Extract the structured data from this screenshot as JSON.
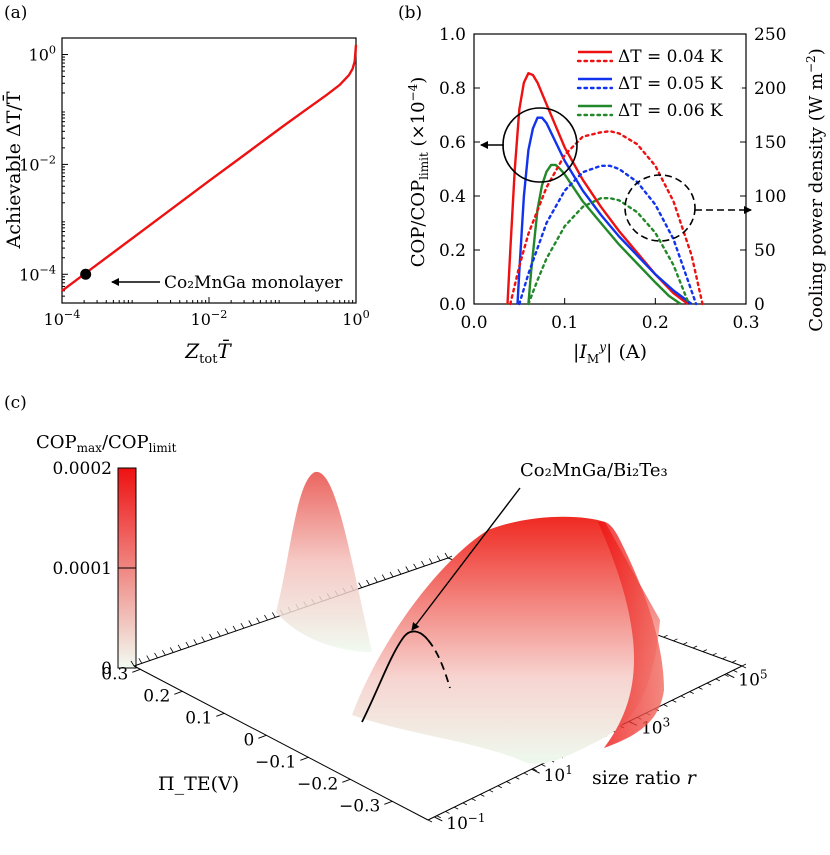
{
  "chart_data": [
    {
      "id": "a",
      "panel_label": "(a)",
      "type": "line",
      "xlabel": "Z_tot T̄",
      "xlabel_main": "Z",
      "xlabel_sub": "tot",
      "xlabel_post": "T̄",
      "ylabel": "Achievable ΔT/T̄",
      "xscale": "log",
      "yscale": "log",
      "xlim": [
        0.0001,
        1
      ],
      "ylim": [
        3e-05,
        2
      ],
      "xticks": [
        {
          "v": 0.0001,
          "base": "10",
          "exp": "−4"
        },
        {
          "v": 0.01,
          "base": "10",
          "exp": "−2"
        },
        {
          "v": 1,
          "base": "10",
          "exp": "0"
        }
      ],
      "yticks": [
        {
          "v": 0.0001,
          "base": "10",
          "exp": "−4"
        },
        {
          "v": 0.01,
          "base": "10",
          "exp": "−2"
        },
        {
          "v": 1,
          "base": "10",
          "exp": "0"
        }
      ],
      "series": [
        {
          "name": "achievable",
          "color": "#ee1111",
          "x": [
            0.0001,
            0.0003,
            0.001,
            0.003,
            0.01,
            0.03,
            0.1,
            0.2,
            0.4,
            0.6,
            0.8,
            0.9,
            0.96,
            1.0
          ],
          "y": [
            5e-05,
            0.00015,
            0.0005,
            0.0015,
            0.005,
            0.0148,
            0.0488,
            0.095,
            0.185,
            0.28,
            0.42,
            0.55,
            0.75,
            1.5
          ]
        }
      ],
      "marker": {
        "x": 0.00021,
        "y": 0.0001,
        "label": "Co₂MnGa monolayer"
      }
    },
    {
      "id": "b",
      "panel_label": "(b)",
      "type": "line",
      "xlabel": "|I_M^y| (A)",
      "ylabel_left": "COP/COP_limit (×10⁻⁴)",
      "ylabel_right": "Cooling power density (W m⁻²)",
      "xlim": [
        0,
        0.3
      ],
      "ylim_left": [
        0,
        1.0
      ],
      "ylim_right": [
        0,
        250
      ],
      "xticks": [
        "0.0",
        "0.1",
        "0.2",
        "0.3"
      ],
      "yticks_left": [
        "0.0",
        "0.2",
        "0.4",
        "0.6",
        "0.8",
        "1.0"
      ],
      "yticks_right": [
        "0",
        "50",
        "100",
        "150",
        "200",
        "250"
      ],
      "legend": [
        {
          "label": "ΔT = 0.04 K",
          "color": "#ee1111"
        },
        {
          "label": "ΔT = 0.05 K",
          "color": "#1133ee"
        },
        {
          "label": "ΔT = 0.06 K",
          "color": "#22882a"
        }
      ],
      "series": [
        {
          "name": "COP ΔT=0.04 K",
          "axis": "left",
          "style": "solid",
          "color": "#ee1111",
          "x": [
            0.037,
            0.04,
            0.045,
            0.05,
            0.055,
            0.06,
            0.065,
            0.07,
            0.08,
            0.09,
            0.1,
            0.12,
            0.14,
            0.16,
            0.18,
            0.2,
            0.22,
            0.236
          ],
          "y": [
            0,
            0.2,
            0.5,
            0.72,
            0.82,
            0.855,
            0.848,
            0.82,
            0.74,
            0.66,
            0.58,
            0.46,
            0.36,
            0.27,
            0.19,
            0.11,
            0.04,
            0
          ]
        },
        {
          "name": "COP ΔT=0.05 K",
          "axis": "left",
          "style": "solid",
          "color": "#1133ee",
          "x": [
            0.048,
            0.05,
            0.055,
            0.06,
            0.065,
            0.07,
            0.075,
            0.08,
            0.09,
            0.1,
            0.12,
            0.14,
            0.16,
            0.18,
            0.2,
            0.22,
            0.24
          ],
          "y": [
            0,
            0.12,
            0.4,
            0.57,
            0.65,
            0.69,
            0.69,
            0.67,
            0.6,
            0.53,
            0.42,
            0.33,
            0.25,
            0.18,
            0.11,
            0.05,
            0
          ]
        },
        {
          "name": "COP ΔT=0.06 K",
          "axis": "left",
          "style": "solid",
          "color": "#22882a",
          "x": [
            0.06,
            0.063,
            0.07,
            0.075,
            0.08,
            0.085,
            0.09,
            0.095,
            0.1,
            0.12,
            0.14,
            0.16,
            0.18,
            0.2,
            0.215,
            0.228
          ],
          "y": [
            0,
            0.12,
            0.35,
            0.44,
            0.49,
            0.515,
            0.515,
            0.5,
            0.48,
            0.38,
            0.3,
            0.22,
            0.15,
            0.08,
            0.03,
            0
          ]
        },
        {
          "name": "Power ΔT=0.04 K",
          "axis": "right",
          "style": "dotted",
          "color": "#ee1111",
          "x": [
            0.04,
            0.05,
            0.06,
            0.08,
            0.1,
            0.12,
            0.14,
            0.15,
            0.16,
            0.18,
            0.2,
            0.22,
            0.24,
            0.252
          ],
          "y": [
            0,
            35,
            65,
            108,
            138,
            155,
            159,
            160,
            158,
            148,
            128,
            95,
            45,
            0
          ]
        },
        {
          "name": "Power ΔT=0.05 K",
          "axis": "right",
          "style": "dotted",
          "color": "#1133ee",
          "x": [
            0.05,
            0.06,
            0.08,
            0.1,
            0.12,
            0.14,
            0.15,
            0.16,
            0.18,
            0.2,
            0.22,
            0.245
          ],
          "y": [
            0,
            28,
            75,
            105,
            122,
            128,
            128,
            125,
            113,
            92,
            60,
            0
          ]
        },
        {
          "name": "Power ΔT=0.06 K",
          "axis": "right",
          "style": "dotted",
          "color": "#22882a",
          "x": [
            0.06,
            0.07,
            0.08,
            0.1,
            0.12,
            0.14,
            0.15,
            0.16,
            0.18,
            0.2,
            0.22,
            0.237
          ],
          "y": [
            0,
            22,
            42,
            72,
            90,
            98,
            98,
            96,
            85,
            66,
            36,
            0
          ]
        }
      ]
    },
    {
      "id": "c",
      "panel_label": "(c)",
      "type": "surface3d",
      "title": "COP_max/COP_limit",
      "colorbar": {
        "label": "COP_max/COP_limit",
        "ticks": [
          "0",
          "0.0001",
          "0.0002"
        ],
        "range": [
          0,
          0.0002
        ],
        "color_low": "#f2fbf2",
        "color_high": "#ee1111"
      },
      "axes": {
        "pi_axis": {
          "label": "Π_TE(V)",
          "ticks": [
            "0.3",
            "0.2",
            "0.1",
            "0",
            "−0.1",
            "−0.2",
            "−0.3"
          ]
        },
        "r_axis": {
          "label": "size ratio r",
          "ticks": [
            {
              "base": "10",
              "exp": "−1"
            },
            {
              "base": "10",
              "exp": "1"
            },
            {
              "base": "10",
              "exp": "3"
            },
            {
              "base": "10",
              "exp": "5"
            }
          ]
        }
      },
      "annotation": "Co₂MnGa/Bi₂Te₃"
    }
  ]
}
